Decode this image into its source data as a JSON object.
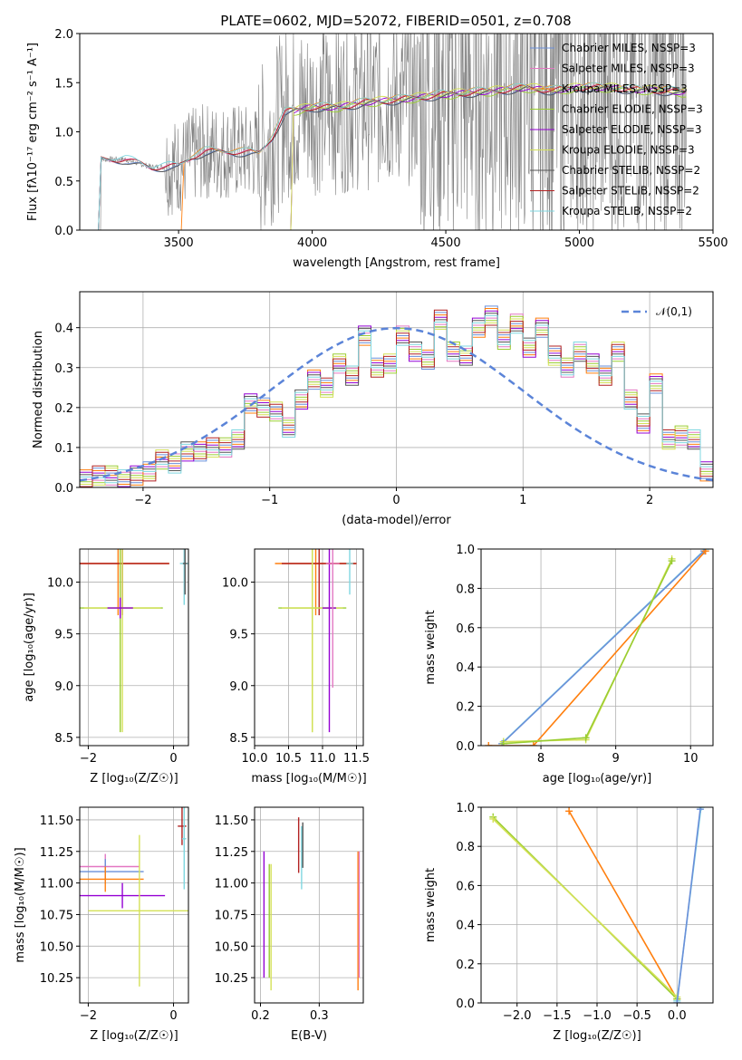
{
  "figure": {
    "title": "PLATE=0602, MJD=52072, FIBERID=0501, z=0.708"
  },
  "chart_data": [
    {
      "id": "spectrum",
      "type": "line",
      "xlabel": "wavelength [Angstrom, rest frame]",
      "ylabel": "Flux [fλ10⁻¹⁷ erg cm⁻² s⁻¹ A⁻¹]",
      "xlim": [
        3130,
        5500
      ],
      "ylim": [
        0.0,
        2.0
      ],
      "xticks": [
        3500,
        4000,
        4500,
        5000,
        5500
      ],
      "yticks": [
        0.0,
        0.5,
        1.0,
        1.5,
        2.0
      ],
      "legend_position": "top-right",
      "series": [
        {
          "name": "Chabrier MILES, NSSP=3",
          "color": "#6a8fd9"
        },
        {
          "name": "Salpeter MILES, NSSP=3",
          "color": "#e377c2"
        },
        {
          "name": "Kroupa MILES, NSSP=3",
          "color": "#ff7f0e"
        },
        {
          "name": "Chabrier ELODIE, NSSP=3",
          "color": "#9acd32"
        },
        {
          "name": "Salpeter ELODIE, NSSP=3",
          "color": "#9400d3"
        },
        {
          "name": "Kroupa ELODIE, NSSP=3",
          "color": "#d4e157"
        },
        {
          "name": "Chabrier STELIB, NSSP=2",
          "color": "#555555"
        },
        {
          "name": "Salpeter STELIB, NSSP=2",
          "color": "#b22222"
        },
        {
          "name": "Kroupa STELIB, NSSP=2",
          "color": "#7fd7e0"
        }
      ],
      "data_color": "#808080",
      "model_points": [
        [
          3200,
          0.0
        ],
        [
          3210,
          0.72
        ],
        [
          3300,
          0.72
        ],
        [
          3400,
          0.64
        ],
        [
          3500,
          0.65
        ],
        [
          3550,
          0.75
        ],
        [
          3600,
          0.8
        ],
        [
          3700,
          0.8
        ],
        [
          3800,
          0.78
        ],
        [
          3850,
          0.95
        ],
        [
          3900,
          1.2
        ],
        [
          4000,
          1.25
        ],
        [
          4100,
          1.25
        ],
        [
          4200,
          1.3
        ],
        [
          4300,
          1.32
        ],
        [
          4400,
          1.35
        ],
        [
          4500,
          1.38
        ],
        [
          4600,
          1.4
        ],
        [
          4700,
          1.42
        ],
        [
          4800,
          1.45
        ],
        [
          4900,
          1.42
        ],
        [
          5000,
          1.45
        ],
        [
          5100,
          1.45
        ],
        [
          5200,
          1.43
        ],
        [
          5300,
          1.42
        ],
        [
          5400,
          1.4
        ]
      ]
    },
    {
      "id": "residuals",
      "type": "line",
      "xlabel": "(data-model)/error",
      "ylabel": "Normed distribution",
      "xlim": [
        -2.5,
        2.5
      ],
      "ylim": [
        0.0,
        0.49
      ],
      "xticks": [
        -2,
        -1,
        0,
        1,
        2
      ],
      "yticks": [
        0.0,
        0.1,
        0.2,
        0.3,
        0.4
      ],
      "legend": "𝒩(0,1)",
      "legend_position": "top-right",
      "gauss_color": "#5b84d8",
      "hist_bin_start": -2.5,
      "hist_bin_width": 0.1,
      "hist_values": [
        0.02,
        0.03,
        0.03,
        0.02,
        0.03,
        0.04,
        0.07,
        0.06,
        0.09,
        0.09,
        0.1,
        0.1,
        0.12,
        0.21,
        0.2,
        0.19,
        0.15,
        0.22,
        0.27,
        0.25,
        0.31,
        0.28,
        0.38,
        0.3,
        0.31,
        0.38,
        0.34,
        0.32,
        0.42,
        0.34,
        0.33,
        0.4,
        0.43,
        0.37,
        0.41,
        0.35,
        0.4,
        0.33,
        0.3,
        0.34,
        0.31,
        0.28,
        0.34,
        0.22,
        0.16,
        0.26,
        0.12,
        0.13,
        0.12,
        0.04
      ],
      "hist_series_colors": [
        "#6a8fd9",
        "#e377c2",
        "#ff7f0e",
        "#9acd32",
        "#9400d3",
        "#d4e157",
        "#555555",
        "#b22222",
        "#7fd7e0"
      ]
    },
    {
      "id": "age-vs-Z",
      "type": "scatter",
      "xlabel": "Z [log₁₀(Z/Z☉)]",
      "ylabel": "age  [log₁₀(age/yr)]",
      "xlim": [
        -2.2,
        0.35
      ],
      "ylim": [
        8.42,
        10.32
      ],
      "xticks": [
        -2,
        0
      ],
      "yticks": [
        8.5,
        9.0,
        9.5,
        10.0
      ],
      "points": [
        {
          "x": -1.3,
          "y": 10.18,
          "xerr": 1.2,
          "yerr": 0.5,
          "color": "#ff7f0e"
        },
        {
          "x": -1.2,
          "y": 10.18,
          "xerr": 1.1,
          "yerr": 0.5,
          "color": "#b22222"
        },
        {
          "x": -1.25,
          "y": 9.75,
          "xerr": 1.0,
          "yerr": 1.2,
          "color": "#9acd32"
        },
        {
          "x": -1.2,
          "y": 9.75,
          "xerr": 0.9,
          "yerr": 1.2,
          "color": "#d4e157"
        },
        {
          "x": -1.25,
          "y": 9.75,
          "xerr": 0.3,
          "yerr": 0.1,
          "color": "#9400d3"
        },
        {
          "x": 0.25,
          "y": 10.18,
          "xerr": 0.1,
          "yerr": 0.4,
          "color": "#7fd7e0"
        },
        {
          "x": 0.27,
          "y": 10.18,
          "xerr": 0.05,
          "yerr": 0.3,
          "color": "#555555"
        }
      ]
    },
    {
      "id": "age-vs-mass",
      "type": "scatter",
      "xlabel": "mass [log₁₀(M/M☉)]",
      "ylabel": "",
      "xlim": [
        10.0,
        11.6
      ],
      "ylim": [
        8.42,
        10.32
      ],
      "xticks": [
        10.0,
        10.5,
        11.0,
        11.5
      ],
      "yticks": [
        8.5,
        9.0,
        9.5,
        10.0
      ],
      "points": [
        {
          "x": 10.9,
          "y": 10.18,
          "xerr": 0.6,
          "yerr": 0.5,
          "color": "#ff7f0e"
        },
        {
          "x": 10.95,
          "y": 10.18,
          "xerr": 0.55,
          "yerr": 0.5,
          "color": "#b22222"
        },
        {
          "x": 10.85,
          "y": 9.75,
          "xerr": 0.5,
          "yerr": 1.2,
          "color": "#9acd32"
        },
        {
          "x": 10.85,
          "y": 9.75,
          "xerr": 0.45,
          "yerr": 1.2,
          "color": "#d4e157"
        },
        {
          "x": 11.1,
          "y": 9.75,
          "xerr": 0.1,
          "yerr": 1.2,
          "color": "#9400d3"
        },
        {
          "x": 11.15,
          "y": 10.18,
          "xerr": 0.1,
          "yerr": 1.2,
          "color": "#e377c2"
        },
        {
          "x": 11.4,
          "y": 10.18,
          "xerr": 0.05,
          "yerr": 0.3,
          "color": "#7fd7e0"
        }
      ]
    },
    {
      "id": "weight-vs-age",
      "type": "line",
      "xlabel": "age  [log₁₀(age/yr)]",
      "ylabel": "mass weight",
      "xlim": [
        7.2,
        10.3
      ],
      "ylim": [
        0.0,
        1.0
      ],
      "xticks": [
        8,
        9,
        10
      ],
      "yticks": [
        0.0,
        0.2,
        0.4,
        0.6,
        0.8,
        1.0
      ],
      "series": [
        {
          "color": "#7fd7e0",
          "points": [
            [
              7.5,
              0.02
            ],
            [
              10.2,
              1.0
            ]
          ]
        },
        {
          "color": "#6a8fd9",
          "points": [
            [
              7.48,
              0.01
            ],
            [
              10.18,
              0.99
            ]
          ]
        },
        {
          "color": "#ff7f0e",
          "points": [
            [
              7.3,
              0.0
            ],
            [
              7.9,
              0.0
            ],
            [
              10.2,
              0.99
            ]
          ]
        },
        {
          "color": "#d4e157",
          "points": [
            [
              7.5,
              0.02
            ],
            [
              8.6,
              0.03
            ],
            [
              9.75,
              0.95
            ]
          ]
        },
        {
          "color": "#9acd32",
          "points": [
            [
              7.5,
              0.01
            ],
            [
              8.6,
              0.04
            ],
            [
              9.75,
              0.94
            ]
          ]
        }
      ]
    },
    {
      "id": "mass-vs-Z",
      "type": "scatter",
      "xlabel": "Z [log₁₀(Z/Z☉)]",
      "ylabel": "mass [log₁₀(M/M☉)]",
      "xlim": [
        -2.2,
        0.35
      ],
      "ylim": [
        10.05,
        11.6
      ],
      "xticks": [
        -2,
        0
      ],
      "yticks": [
        10.25,
        10.5,
        10.75,
        11.0,
        11.25,
        11.5
      ],
      "points": [
        {
          "x": -1.6,
          "y": 11.13,
          "xerr": 0.8,
          "yerr": 0.1,
          "color": "#e377c2"
        },
        {
          "x": -1.6,
          "y": 11.09,
          "xerr": 0.9,
          "yerr": 0.1,
          "color": "#6a8fd9"
        },
        {
          "x": -1.6,
          "y": 11.03,
          "xerr": 0.9,
          "yerr": 0.1,
          "color": "#ff7f0e"
        },
        {
          "x": -1.2,
          "y": 10.9,
          "xerr": 1.0,
          "yerr": 0.1,
          "color": "#9400d3"
        },
        {
          "x": -0.8,
          "y": 10.78,
          "xerr": 1.2,
          "yerr": 0.6,
          "color": "#d4e157"
        },
        {
          "x": 0.2,
          "y": 11.45,
          "xerr": 0.1,
          "yerr": 0.15,
          "color": "#b22222"
        },
        {
          "x": 0.25,
          "y": 11.35,
          "xerr": 0.05,
          "yerr": 0.4,
          "color": "#7fd7e0"
        }
      ]
    },
    {
      "id": "mass-vs-ebv",
      "type": "scatter",
      "xlabel": "E(B-V)",
      "ylabel": "",
      "xlim": [
        0.19,
        0.375
      ],
      "ylim": [
        10.05,
        11.6
      ],
      "xticks": [
        0.2,
        0.3
      ],
      "yticks": [
        10.25,
        10.5,
        10.75,
        11.0,
        11.25,
        11.5
      ],
      "points": [
        {
          "x": 0.206,
          "y": 10.75,
          "yerr": 0.5,
          "color": "#9400d3"
        },
        {
          "x": 0.215,
          "y": 10.7,
          "yerr": 0.45,
          "color": "#9acd32"
        },
        {
          "x": 0.218,
          "y": 10.65,
          "yerr": 0.5,
          "color": "#d4e157"
        },
        {
          "x": 0.265,
          "y": 11.3,
          "yerr": 0.22,
          "color": "#b22222"
        },
        {
          "x": 0.27,
          "y": 11.2,
          "yerr": 0.25,
          "color": "#7fd7e0"
        },
        {
          "x": 0.272,
          "y": 11.3,
          "yerr": 0.18,
          "color": "#555555"
        },
        {
          "x": 0.366,
          "y": 10.7,
          "yerr": 0.55,
          "color": "#ff7f0e"
        },
        {
          "x": 0.368,
          "y": 10.75,
          "yerr": 0.5,
          "color": "#e377c2"
        }
      ]
    },
    {
      "id": "weight-vs-Z",
      "type": "line",
      "xlabel": "Z [log₁₀(Z/Z☉)]",
      "ylabel": "mass weight",
      "xlim": [
        -2.45,
        0.45
      ],
      "ylim": [
        0.0,
        1.0
      ],
      "xticks": [
        -2.0,
        -1.5,
        -1.0,
        -0.5,
        0.0
      ],
      "yticks": [
        0.0,
        0.2,
        0.4,
        0.6,
        0.8,
        1.0
      ],
      "series": [
        {
          "color": "#ff7f0e",
          "points": [
            [
              -1.35,
              0.98
            ],
            [
              0.0,
              0.02
            ]
          ]
        },
        {
          "color": "#9acd32",
          "points": [
            [
              -2.3,
              0.95
            ],
            [
              0.0,
              0.02
            ]
          ]
        },
        {
          "color": "#d4e157",
          "points": [
            [
              -2.3,
              0.94
            ],
            [
              0.0,
              0.03
            ]
          ]
        },
        {
          "color": "#7fd7e0",
          "points": [
            [
              0.0,
              0.01
            ],
            [
              0.3,
              1.0
            ]
          ]
        },
        {
          "color": "#6a8fd9",
          "points": [
            [
              0.0,
              0.0
            ],
            [
              0.29,
              0.99
            ]
          ]
        }
      ]
    }
  ]
}
